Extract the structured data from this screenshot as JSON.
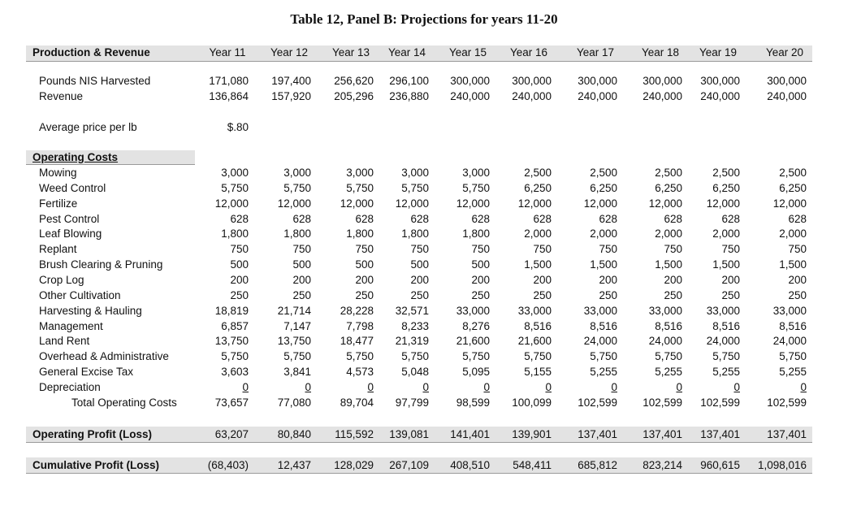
{
  "title": "Table 12, Panel B:  Projections for years 11-20",
  "header": {
    "label": "Production & Revenue",
    "years": [
      "Year 11",
      "Year 12",
      "Year 13",
      "Year 14",
      "Year 15",
      "Year 16",
      "Year 17",
      "Year 18",
      "Year 19",
      "Year 20"
    ]
  },
  "revenue_rows": [
    {
      "label": "Pounds NIS Harvested",
      "values": [
        "171,080",
        "197,400",
        "256,620",
        "296,100",
        "300,000",
        "300,000",
        "300,000",
        "300,000",
        "300,000",
        "300,000"
      ]
    },
    {
      "label": "Revenue",
      "values": [
        "136,864",
        "157,920",
        "205,296",
        "236,880",
        "240,000",
        "240,000",
        "240,000",
        "240,000",
        "240,000",
        "240,000"
      ]
    }
  ],
  "avg_price": {
    "label": "Average price per lb",
    "value": "$.80"
  },
  "operating_costs": {
    "label": "Operating Costs",
    "rows": [
      {
        "label": "Mowing",
        "values": [
          "3,000",
          "3,000",
          "3,000",
          "3,000",
          "3,000",
          "2,500",
          "2,500",
          "2,500",
          "2,500",
          "2,500"
        ]
      },
      {
        "label": "Weed Control",
        "values": [
          "5,750",
          "5,750",
          "5,750",
          "5,750",
          "5,750",
          "6,250",
          "6,250",
          "6,250",
          "6,250",
          "6,250"
        ]
      },
      {
        "label": "Fertilize",
        "values": [
          "12,000",
          "12,000",
          "12,000",
          "12,000",
          "12,000",
          "12,000",
          "12,000",
          "12,000",
          "12,000",
          "12,000"
        ]
      },
      {
        "label": "Pest Control",
        "values": [
          "628",
          "628",
          "628",
          "628",
          "628",
          "628",
          "628",
          "628",
          "628",
          "628"
        ]
      },
      {
        "label": "Leaf Blowing",
        "values": [
          "1,800",
          "1,800",
          "1,800",
          "1,800",
          "1,800",
          "2,000",
          "2,000",
          "2,000",
          "2,000",
          "2,000"
        ]
      },
      {
        "label": "Replant",
        "values": [
          "750",
          "750",
          "750",
          "750",
          "750",
          "750",
          "750",
          "750",
          "750",
          "750"
        ]
      },
      {
        "label": "Brush Clearing & Pruning",
        "values": [
          "500",
          "500",
          "500",
          "500",
          "500",
          "1,500",
          "1,500",
          "1,500",
          "1,500",
          "1,500"
        ]
      },
      {
        "label": "Crop Log",
        "values": [
          "200",
          "200",
          "200",
          "200",
          "200",
          "200",
          "200",
          "200",
          "200",
          "200"
        ]
      },
      {
        "label": "Other Cultivation",
        "values": [
          "250",
          "250",
          "250",
          "250",
          "250",
          "250",
          "250",
          "250",
          "250",
          "250"
        ]
      },
      {
        "label": "Harvesting & Hauling",
        "values": [
          "18,819",
          "21,714",
          "28,228",
          "32,571",
          "33,000",
          "33,000",
          "33,000",
          "33,000",
          "33,000",
          "33,000"
        ]
      },
      {
        "label": "Management",
        "values": [
          "6,857",
          "7,147",
          "7,798",
          "8,233",
          "8,276",
          "8,516",
          "8,516",
          "8,516",
          "8,516",
          "8,516"
        ]
      },
      {
        "label": "Land Rent",
        "values": [
          "13,750",
          "13,750",
          "18,477",
          "21,319",
          "21,600",
          "21,600",
          "24,000",
          "24,000",
          "24,000",
          "24,000"
        ]
      },
      {
        "label": "Overhead & Administrative",
        "values": [
          "5,750",
          "5,750",
          "5,750",
          "5,750",
          "5,750",
          "5,750",
          "5,750",
          "5,750",
          "5,750",
          "5,750"
        ]
      },
      {
        "label": "General Excise Tax",
        "values": [
          "3,603",
          "3,841",
          "4,573",
          "5,048",
          "5,095",
          "5,155",
          "5,255",
          "5,255",
          "5,255",
          "5,255"
        ]
      },
      {
        "label": "Depreciation",
        "values": [
          "0",
          "0",
          "0",
          "0",
          "0",
          "0",
          "0",
          "0",
          "0",
          "0"
        ]
      }
    ],
    "total": {
      "label": "Total Operating Costs",
      "values": [
        "73,657",
        "77,080",
        "89,704",
        "97,799",
        "98,599",
        "100,099",
        "102,599",
        "102,599",
        "102,599",
        "102,599"
      ]
    }
  },
  "operating_profit": {
    "label": "Operating Profit (Loss)",
    "values": [
      "63,207",
      "80,840",
      "115,592",
      "139,081",
      "141,401",
      "139,901",
      "137,401",
      "137,401",
      "137,401",
      "137,401"
    ]
  },
  "cumulative_profit": {
    "label": "Cumulative Profit (Loss)",
    "values": [
      "(68,403)",
      "12,437",
      "128,029",
      "267,109",
      "408,510",
      "548,411",
      "685,812",
      "823,214",
      "960,615",
      "1,098,016"
    ]
  }
}
